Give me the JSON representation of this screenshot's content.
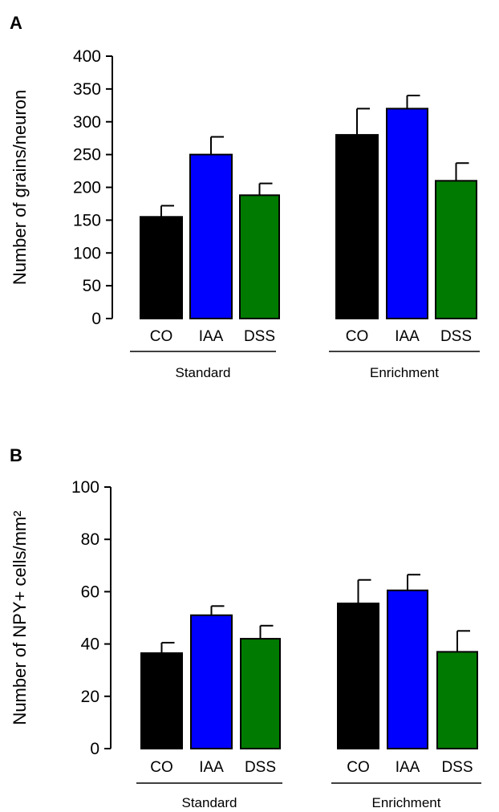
{
  "chart_data": [
    {
      "type": "bar",
      "panel": "A",
      "ylabel": "Number of grains/neuron",
      "ylim": [
        0,
        400
      ],
      "yticks": [
        0,
        50,
        100,
        150,
        200,
        250,
        300,
        350,
        400
      ],
      "groups": [
        {
          "name": "Standard",
          "categories": [
            "CO",
            "IAA",
            "DSS"
          ],
          "values": [
            155,
            250,
            188
          ],
          "errors": [
            17,
            27,
            18
          ]
        },
        {
          "name": "Enrichment",
          "categories": [
            "CO",
            "IAA",
            "DSS"
          ],
          "values": [
            280,
            320,
            210
          ],
          "errors": [
            40,
            20,
            27
          ]
        }
      ],
      "colors": [
        "#000000",
        "#0000ff",
        "#007a00"
      ],
      "grid": false
    },
    {
      "type": "bar",
      "panel": "B",
      "ylabel": "Number of NPY+ cells/mm²",
      "ylim": [
        0,
        100
      ],
      "yticks": [
        0,
        20,
        40,
        60,
        80,
        100
      ],
      "groups": [
        {
          "name": "Standard",
          "categories": [
            "CO",
            "IAA",
            "DSS"
          ],
          "values": [
            36.5,
            51,
            42
          ],
          "errors": [
            4,
            3.5,
            5
          ]
        },
        {
          "name": "Enrichment",
          "categories": [
            "CO",
            "IAA",
            "DSS"
          ],
          "values": [
            55.5,
            60.5,
            37
          ],
          "errors": [
            9,
            6,
            8
          ]
        }
      ],
      "colors": [
        "#000000",
        "#0000ff",
        "#007a00"
      ],
      "grid": false
    }
  ]
}
